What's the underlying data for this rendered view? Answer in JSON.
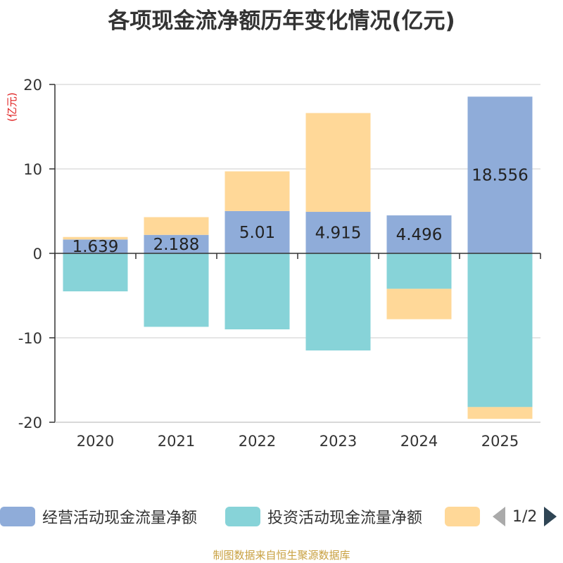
{
  "title": "各项现金流净额历年变化情况(亿元)",
  "unit_label": "(亿元)",
  "footer": "制图数据来自恒生聚源数据库",
  "colors": {
    "operating": "#8facd9",
    "investing": "#87d3d8",
    "third": "#ffd898",
    "axis": "#333333",
    "grid": "#cccccc"
  },
  "chart_data": {
    "type": "bar",
    "stacked": true,
    "categories": [
      "2020",
      "2021",
      "2022",
      "2023",
      "2024",
      "2025"
    ],
    "ylim": [
      -20,
      20
    ],
    "yticks": [
      20,
      10,
      0,
      -10,
      -20
    ],
    "series": [
      {
        "name": "经营活动现金流量净额",
        "values": [
          1.639,
          2.188,
          5.01,
          4.915,
          4.496,
          18.556
        ],
        "show_labels": true
      },
      {
        "name": "投资活动现金流量净额",
        "values": [
          -4.5,
          -8.7,
          -9.0,
          -11.5,
          -4.2,
          -18.2
        ]
      },
      {
        "name": "",
        "values": [
          0.3,
          2.1,
          4.7,
          11.7,
          -3.6,
          -1.4
        ]
      }
    ]
  },
  "legend": {
    "items": [
      {
        "label": "经营活动现金流量净额",
        "color": "#8facd9"
      },
      {
        "label": "投资活动现金流量净额",
        "color": "#87d3d8"
      },
      {
        "label": "",
        "color": "#ffd898"
      }
    ],
    "page": "1/2"
  }
}
